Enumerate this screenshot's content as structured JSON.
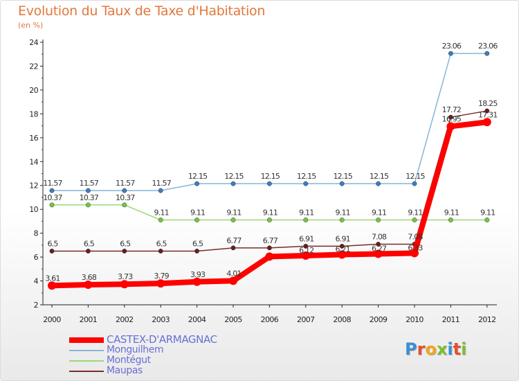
{
  "title": "Evolution du Taux de Taxe d'Habitation",
  "subtitle": "(en %)",
  "logo": "Proxiti",
  "chart_data": {
    "type": "line",
    "title": "Evolution du Taux de Taxe d'Habitation",
    "ylabel": "(en %)",
    "xlabel": "",
    "ylim": [
      2,
      24
    ],
    "yticks": [
      2,
      4,
      6,
      8,
      10,
      12,
      14,
      16,
      18,
      20,
      22,
      24
    ],
    "x": [
      2000,
      2001,
      2002,
      2003,
      2004,
      2005,
      2006,
      2007,
      2008,
      2009,
      2010,
      2011,
      2012
    ],
    "legend_position": "bottom-left",
    "series": [
      {
        "name": "CASTEX-D'ARMAGNAC",
        "color": "#ff0000",
        "point_color": "#ff0000",
        "width": 8,
        "values": [
          3.61,
          3.68,
          3.73,
          3.79,
          3.93,
          4.01,
          6.04,
          6.12,
          6.21,
          6.27,
          6.33,
          16.95,
          17.31
        ],
        "labels": [
          "3.61",
          "3.68",
          "3.73",
          "3.79",
          "3.93",
          "4.01",
          "",
          "6.12",
          "6.21",
          "6.27",
          "6.33",
          "16.95",
          "17.31"
        ]
      },
      {
        "name": "Monguilhem",
        "color": "#88b4d6",
        "point_color": "#3a7fc0",
        "width": 1.5,
        "values": [
          11.57,
          11.57,
          11.57,
          11.57,
          12.15,
          12.15,
          12.15,
          12.15,
          12.15,
          12.15,
          12.15,
          23.06,
          23.06
        ],
        "labels": [
          "11.57",
          "11.57",
          "11.57",
          "11.57",
          "12.15",
          "12.15",
          "12.15",
          "12.15",
          "12.15",
          "12.15",
          "12.15",
          "23.06",
          "23.06"
        ]
      },
      {
        "name": "Montégut",
        "color": "#99d977",
        "point_color": "#74c83c",
        "width": 1.5,
        "values": [
          10.37,
          10.37,
          10.37,
          9.11,
          9.11,
          9.11,
          9.11,
          9.11,
          9.11,
          9.11,
          9.11,
          9.11,
          9.11
        ],
        "labels": [
          "10.37",
          "10.37",
          "10.37",
          "9.11",
          "9.11",
          "9.11",
          "9.11",
          "9.11",
          "9.11",
          "9.11",
          "9.11",
          "9.11",
          "9.11"
        ]
      },
      {
        "name": "Maupas",
        "color": "#7a2b2b",
        "point_color": "#6b1d1d",
        "width": 1.5,
        "values": [
          6.5,
          6.5,
          6.5,
          6.5,
          6.5,
          6.77,
          6.77,
          6.91,
          6.91,
          7.08,
          7.08,
          17.72,
          18.25
        ],
        "labels": [
          "6.5",
          "6.5",
          "6.5",
          "6.5",
          "6.5",
          "6.77",
          "6.77",
          "6.91",
          "6.91",
          "7.08",
          "7.08",
          "17.72",
          "18.25"
        ]
      }
    ]
  }
}
